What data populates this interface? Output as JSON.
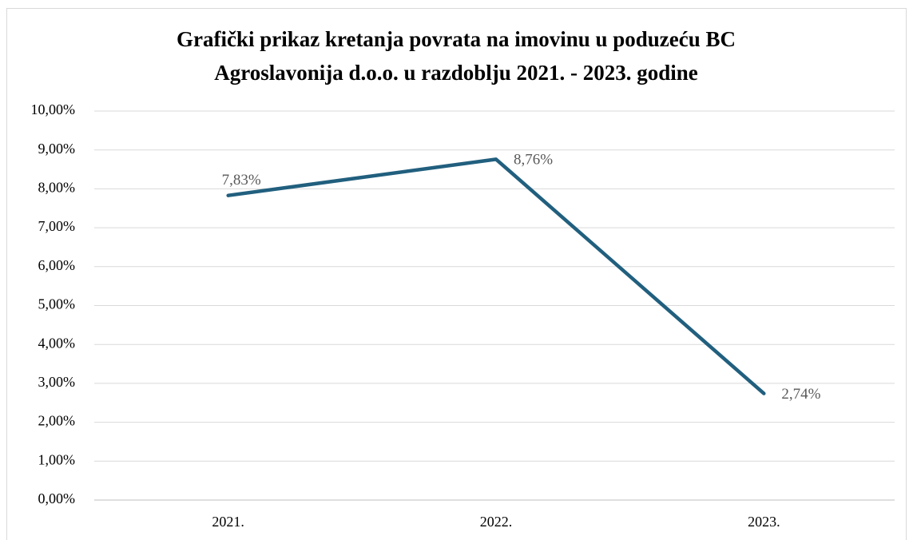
{
  "chart_data": {
    "type": "line",
    "title": "Grafički prikaz kretanja povrata na imovinu u poduzeću BC Agroslavonija d.o.o. u razdoblju 2021. - 2023. godine",
    "categories": [
      "2021.",
      "2022.",
      "2023."
    ],
    "series": [
      {
        "name": null,
        "color": "#215f7e",
        "values": [
          7.83,
          8.76,
          2.74
        ],
        "value_labels": [
          "7,83%",
          "8,76%",
          "2,74%"
        ]
      }
    ],
    "ylim": [
      0,
      10
    ],
    "yticks": [
      {
        "value": 0,
        "label": "0,00%"
      },
      {
        "value": 1,
        "label": "1,00%"
      },
      {
        "value": 2,
        "label": "2,00%"
      },
      {
        "value": 3,
        "label": "3,00%"
      },
      {
        "value": 4,
        "label": "4,00%"
      },
      {
        "value": 5,
        "label": "5,00%"
      },
      {
        "value": 6,
        "label": "6,00%"
      },
      {
        "value": 7,
        "label": "7,00%"
      },
      {
        "value": 8,
        "label": "8,00%"
      },
      {
        "value": 9,
        "label": "9,00%"
      },
      {
        "value": 10,
        "label": "10,00%"
      }
    ],
    "grid": true
  }
}
